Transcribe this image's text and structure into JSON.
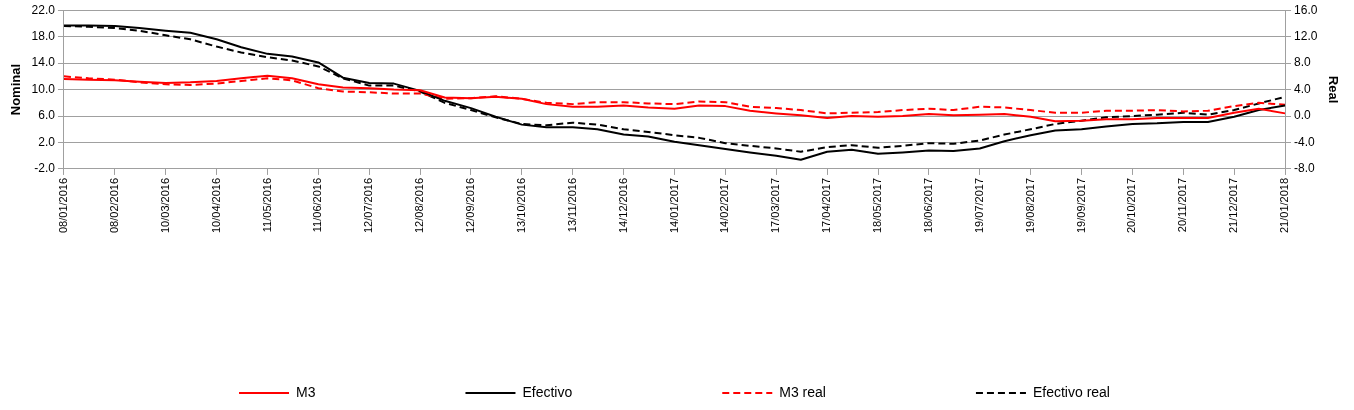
{
  "chart_data": {
    "type": "line",
    "ylabel": "Nominal",
    "y2label": "Real",
    "x": [
      "2016-01-08",
      "2016-01-23",
      "2016-02-08",
      "2016-02-23",
      "2016-03-10",
      "2016-03-25",
      "2016-04-10",
      "2016-04-25",
      "2016-05-11",
      "2016-05-26",
      "2016-06-11",
      "2016-06-26",
      "2016-07-12",
      "2016-07-27",
      "2016-08-12",
      "2016-08-27",
      "2016-09-12",
      "2016-09-27",
      "2016-10-13",
      "2016-10-28",
      "2016-11-13",
      "2016-11-28",
      "2016-12-14",
      "2016-12-29",
      "2017-01-14",
      "2017-01-29",
      "2017-02-14",
      "2017-03-01",
      "2017-03-17",
      "2017-04-01",
      "2017-04-17",
      "2017-05-02",
      "2017-05-18",
      "2017-06-02",
      "2017-06-18",
      "2017-07-03",
      "2017-07-19",
      "2017-08-03",
      "2017-08-19",
      "2017-09-03",
      "2017-09-19",
      "2017-10-04",
      "2017-10-20",
      "2017-11-04",
      "2017-11-20",
      "2017-12-05",
      "2017-12-21",
      "2018-01-05",
      "2018-01-21"
    ],
    "series": [
      {
        "name": "M3",
        "color": "#ff0000",
        "line_style": "solid",
        "values": [
          11.6,
          11.5,
          11.4,
          11.2,
          11.0,
          11.1,
          11.3,
          11.7,
          12.1,
          11.7,
          10.8,
          10.3,
          10.2,
          10.0,
          9.9,
          8.8,
          8.7,
          8.9,
          8.6,
          7.8,
          7.4,
          7.4,
          7.6,
          7.3,
          7.1,
          7.6,
          7.5,
          6.8,
          6.4,
          6.1,
          5.7,
          6.0,
          5.9,
          6.0,
          6.3,
          6.1,
          6.2,
          6.3,
          5.9,
          5.2,
          5.3,
          5.5,
          5.5,
          5.7,
          5.7,
          5.7,
          6.5,
          7.1,
          6.4
        ]
      },
      {
        "name": "Efectivo",
        "color": "#000000",
        "line_style": "solid",
        "values": [
          19.7,
          19.7,
          19.6,
          19.3,
          18.9,
          18.6,
          17.6,
          16.4,
          15.4,
          15.0,
          14.1,
          11.8,
          11.0,
          10.9,
          9.8,
          8.3,
          7.2,
          5.9,
          4.7,
          4.3,
          4.3,
          4.0,
          3.2,
          2.9,
          2.1,
          1.6,
          1.0,
          0.5,
          0.0,
          -0.6,
          0.6,
          0.9,
          0.3,
          0.5,
          0.8,
          0.7,
          1.1,
          2.2,
          3.1,
          3.8,
          4.0,
          4.4,
          4.8,
          4.9,
          5.1,
          5.1,
          5.9,
          6.9,
          7.6
        ]
      },
      {
        "name": "M3 real",
        "color": "#ff0000",
        "line_style": "dashed",
        "axis": "y2",
        "values": [
          6.0,
          5.7,
          5.5,
          5.1,
          4.8,
          4.7,
          4.9,
          5.3,
          5.7,
          5.4,
          4.2,
          3.7,
          3.6,
          3.4,
          3.4,
          2.6,
          2.7,
          3.0,
          2.6,
          2.0,
          1.8,
          2.1,
          2.1,
          1.9,
          1.8,
          2.2,
          2.1,
          1.4,
          1.2,
          0.9,
          0.4,
          0.5,
          0.6,
          0.9,
          1.1,
          0.9,
          1.4,
          1.3,
          0.9,
          0.5,
          0.5,
          0.8,
          0.8,
          0.9,
          0.7,
          0.8,
          1.5,
          2.0,
          1.7
        ]
      },
      {
        "name": "Efectivo real",
        "color": "#000000",
        "line_style": "dashed",
        "axis": "y2",
        "values": [
          13.6,
          13.5,
          13.3,
          12.9,
          12.2,
          11.6,
          10.5,
          9.6,
          8.9,
          8.4,
          7.5,
          5.7,
          4.6,
          4.6,
          3.7,
          2.0,
          0.9,
          -0.2,
          -1.2,
          -1.4,
          -1.0,
          -1.3,
          -2.0,
          -2.4,
          -2.9,
          -3.3,
          -4.1,
          -4.5,
          -4.9,
          -5.4,
          -4.7,
          -4.4,
          -4.8,
          -4.5,
          -4.1,
          -4.2,
          -3.7,
          -2.8,
          -2.0,
          -1.2,
          -0.7,
          -0.2,
          0.0,
          0.2,
          0.5,
          0.2,
          0.9,
          1.9,
          2.9
        ]
      }
    ],
    "xlim": [
      "2016-01-08",
      "2018-01-21"
    ],
    "xticks": [
      {
        "value": "2016-01-08",
        "label": "08/01/2016"
      },
      {
        "value": "2016-02-08",
        "label": "08/02/2016"
      },
      {
        "value": "2016-03-10",
        "label": "10/03/2016"
      },
      {
        "value": "2016-04-10",
        "label": "10/04/2016"
      },
      {
        "value": "2016-05-11",
        "label": "11/05/2016"
      },
      {
        "value": "2016-06-11",
        "label": "11/06/2016"
      },
      {
        "value": "2016-07-12",
        "label": "12/07/2016"
      },
      {
        "value": "2016-08-12",
        "label": "12/08/2016"
      },
      {
        "value": "2016-09-12",
        "label": "12/09/2016"
      },
      {
        "value": "2016-10-13",
        "label": "13/10/2016"
      },
      {
        "value": "2016-11-13",
        "label": "13/11/2016"
      },
      {
        "value": "2016-12-14",
        "label": "14/12/2016"
      },
      {
        "value": "2017-01-14",
        "label": "14/01/2017"
      },
      {
        "value": "2017-02-14",
        "label": "14/02/2017"
      },
      {
        "value": "2017-03-17",
        "label": "17/03/2017"
      },
      {
        "value": "2017-04-17",
        "label": "17/04/2017"
      },
      {
        "value": "2017-05-18",
        "label": "18/05/2017"
      },
      {
        "value": "2017-06-18",
        "label": "18/06/2017"
      },
      {
        "value": "2017-07-19",
        "label": "19/07/2017"
      },
      {
        "value": "2017-08-19",
        "label": "19/08/2017"
      },
      {
        "value": "2017-09-19",
        "label": "19/09/2017"
      },
      {
        "value": "2017-10-20",
        "label": "20/10/2017"
      },
      {
        "value": "2017-11-20",
        "label": "20/11/2017"
      },
      {
        "value": "2017-12-21",
        "label": "21/12/2017"
      },
      {
        "value": "2018-01-21",
        "label": "21/01/2018"
      }
    ],
    "ylim": [
      -2,
      22
    ],
    "yticks": [
      {
        "value": -2,
        "label": "-2.0"
      },
      {
        "value": 2,
        "label": "2.0"
      },
      {
        "value": 6,
        "label": "6.0"
      },
      {
        "value": 10,
        "label": "10.0"
      },
      {
        "value": 14,
        "label": "14.0"
      },
      {
        "value": 18,
        "label": "18.0"
      },
      {
        "value": 22,
        "label": "22.0"
      }
    ],
    "y2lim": [
      -8,
      16
    ],
    "y2ticks": [
      {
        "value": -8,
        "label": "-8.0"
      },
      {
        "value": -4,
        "label": "-4.0"
      },
      {
        "value": 0,
        "label": "0.0"
      },
      {
        "value": 4,
        "label": "4.0"
      },
      {
        "value": 8,
        "label": "8.0"
      },
      {
        "value": 12,
        "label": "12.0"
      },
      {
        "value": 16,
        "label": "16.0"
      }
    ],
    "grid": "y",
    "legend": "bottom",
    "marker": "none"
  }
}
